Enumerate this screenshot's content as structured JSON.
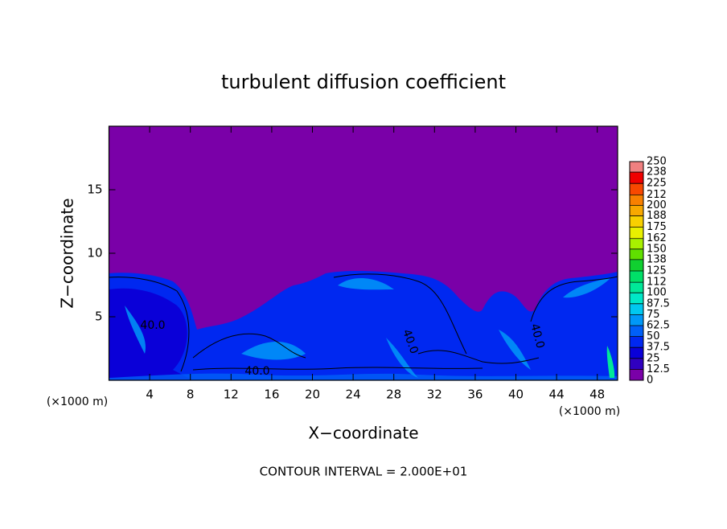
{
  "chart_data": {
    "type": "contour",
    "title": "turbulent diffusion coefficient",
    "xlabel": "X−coordinate",
    "ylabel": "Z−coordinate",
    "xunit": "(×1000 m)",
    "footnote": "CONTOUR INTERVAL = 2.000E+01",
    "xlim": [
      0,
      50
    ],
    "ylim": [
      0,
      20
    ],
    "xticks": [
      4,
      8,
      12,
      16,
      20,
      24,
      28,
      32,
      36,
      40,
      44,
      48
    ],
    "yticks": [
      5,
      10,
      15
    ],
    "contour_labels": [
      "40.0",
      "40.0",
      "40.0",
      "40.0"
    ],
    "colorbar": {
      "levels": [
        0,
        12.5,
        25,
        37.5,
        50,
        62.5,
        75,
        87.5,
        100,
        112,
        125,
        138,
        150,
        162,
        175,
        188,
        200,
        212,
        225,
        238,
        250
      ],
      "colors": [
        "#7a00a8",
        "#3000c0",
        "#0a00d8",
        "#0028f0",
        "#0060f8",
        "#0098f8",
        "#00c8f0",
        "#00e8c8",
        "#00e898",
        "#00e068",
        "#10d030",
        "#60e000",
        "#a8f000",
        "#e8f000",
        "#f8d000",
        "#f8a800",
        "#f88000",
        "#f84800",
        "#f00000",
        "#f08080"
      ]
    }
  }
}
